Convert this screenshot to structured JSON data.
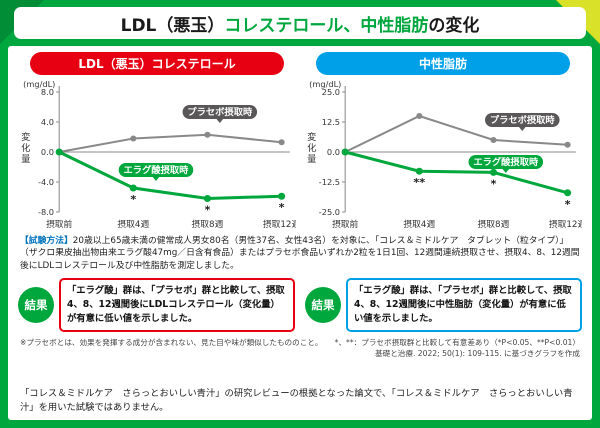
{
  "colors": {
    "frame_green": "#00a63e",
    "corner_dark_green": "#008d36",
    "corner_yellow": "#d9e228",
    "ldl_red": "#e60012",
    "triglyceride_blue": "#00a0e9",
    "ellagic_green": "#00a73c",
    "placebo_gray": "#898989",
    "placebo_badge_gray": "#595757"
  },
  "title": {
    "part1": "LDL（悪玉）",
    "part2": "コレステロール、中性脂肪",
    "part3": "の変化"
  },
  "method": {
    "label": "【試験方法】",
    "text": "20歳以上65歳未満の健常成人男女80名（男性37名、女性43名）を対象に、「コレス＆ミドルケア　タブレット（粒タイプ）」（ザクロ果皮抽出物由来エラグ酸47mg／日含有食品）またはプラセボ食品いずれか2粒を1日1回、12週間連続摂取させ、摂取4、8、12週間後にLDLコレステロール及び中性脂肪を測定しました。"
  },
  "results": [
    {
      "label": "結果",
      "border_color": "#e60012",
      "text": "「エラグ酸」群は、「プラセボ」群と比較して、摂取4、8、12週間後にLDLコレステロール（変化量）が有意に低い値を示しました。"
    },
    {
      "label": "結果",
      "border_color": "#00a0e9",
      "text": "「エラグ酸」群は、「プラセボ」群と比較して、摂取4、8、12週間後に中性脂肪（変化量）が有意に低い値を示しました。"
    }
  ],
  "footnotes": {
    "placebo_note": "※プラセボとは、効果を発揮する成分が含まれない、見た目や味が類似したもののこと。",
    "significance_note": "*、**：プラセボ摂取群と比較して有意差あり（*P<0.05、**P<0.01）",
    "source_note": "基礎と治療. 2022; 50(1): 109-115. に基づきグラフを作成"
  },
  "bottom_note": "「コレス＆ミドルケア　さらっとおいしい青汁」の研究レビューの根拠となった論文で、「コレス＆ミドルケア　さらっとおいしい青汁」を用いた試験ではありません。",
  "chart_data": [
    {
      "type": "line",
      "badge": "LDL（悪玉）コレステロール",
      "badge_color": "#e60012",
      "unit": "(mg/dL)",
      "ylabel": "変化量",
      "ylim": [
        -8,
        8
      ],
      "yticks": [
        "8.0",
        "4.0",
        "0.0",
        "-4.0",
        "-8.0"
      ],
      "categories": [
        "摂取前",
        "摂取4週",
        "摂取8週",
        "摂取12週"
      ],
      "grid": false,
      "legend_position": "inline-badges",
      "series": [
        {
          "name": "プラセボ摂取時",
          "color": "#898989",
          "badge_color": "#595757",
          "width": 2,
          "values": [
            0,
            1.8,
            2.3,
            1.3
          ],
          "marks": [
            "",
            "",
            "",
            ""
          ],
          "label_pos": [
            196,
            36
          ]
        },
        {
          "name": "エラグ酸摂取時",
          "color": "#00a73c",
          "badge_color": "#00a73c",
          "width": 3,
          "values": [
            0,
            -4.8,
            -6.2,
            -5.9
          ],
          "marks": [
            "",
            "*",
            "*",
            "*"
          ],
          "label_pos": [
            134,
            94
          ]
        }
      ]
    },
    {
      "type": "line",
      "badge": "中性脂肪",
      "badge_color": "#00a0e9",
      "unit": "(mg/dL)",
      "ylabel": "変化量",
      "ylim": [
        -25,
        25
      ],
      "yticks": [
        "25.0",
        "12.5",
        "0.0",
        "-12.5",
        "-25.0"
      ],
      "categories": [
        "摂取前",
        "摂取4週",
        "摂取8週",
        "摂取12週"
      ],
      "grid": false,
      "legend_position": "inline-badges",
      "series": [
        {
          "name": "プラセボ摂取時",
          "color": "#898989",
          "badge_color": "#595757",
          "width": 2,
          "values": [
            0,
            15,
            5,
            3
          ],
          "marks": [
            "",
            "",
            "",
            ""
          ],
          "label_pos": [
            212,
            44
          ]
        },
        {
          "name": "エラグ酸摂取時",
          "color": "#00a73c",
          "badge_color": "#00a73c",
          "width": 3,
          "values": [
            0,
            -8,
            -8.5,
            -17
          ],
          "marks": [
            "",
            "**",
            "*",
            "*"
          ],
          "label_pos": [
            196,
            86
          ]
        }
      ]
    }
  ]
}
